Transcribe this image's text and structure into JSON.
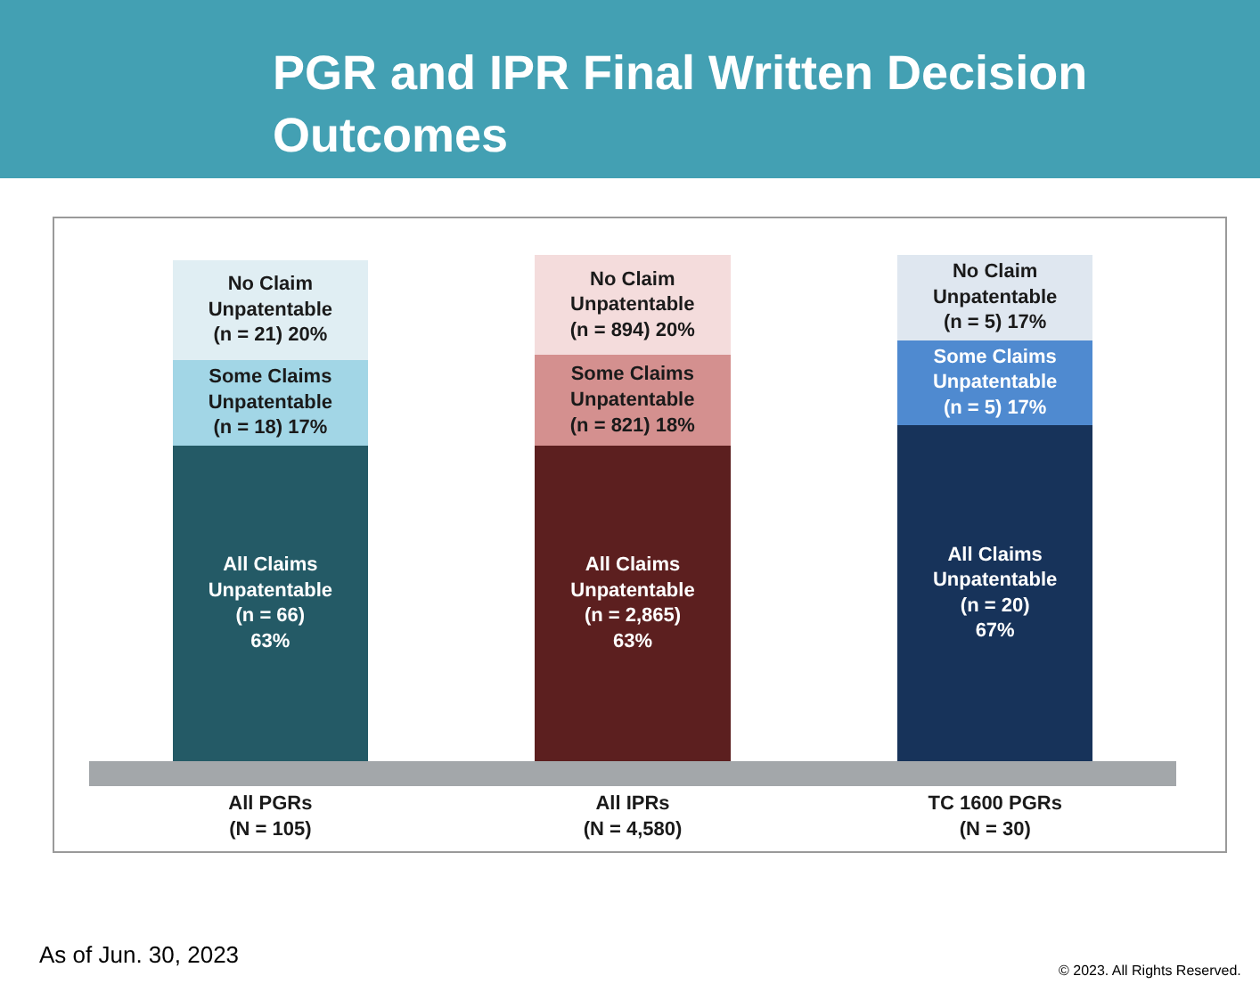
{
  "chart_data": {
    "type": "bar",
    "stacked": true,
    "title": "PGR and IPR Final Written Decision\nOutcomes",
    "categories": [
      "All PGRs\n(N = 105)",
      "All IPRs\n(N = 4,580)",
      "TC 1600 PGRs\n(N = 30)"
    ],
    "series": [
      {
        "colors": [
          "#245a66",
          "#5c1f1f",
          "#17335a"
        ],
        "values": [
          63,
          63,
          67
        ],
        "value_labels": [
          "All Claims\nUnpatentable\n(n = 66)\n63%",
          "All Claims\nUnpatentable\n(n = 2,865)\n63%",
          "All Claims\nUnpatentable\n(n = 20)\n67%"
        ]
      },
      {
        "colors": [
          "#a2d6e6",
          "#d4908f",
          "#4f8ad0"
        ],
        "values": [
          17,
          18,
          17
        ],
        "value_labels": [
          "Some Claims\nUnpatentable\n(n = 18) 17%",
          "Some Claims\nUnpatentable\n(n = 821) 18%",
          "Some Claims\nUnpatentable\n(n = 5) 17%"
        ]
      },
      {
        "colors": [
          "#e0eef3",
          "#f4dcdc",
          "#dfe7f0"
        ],
        "values": [
          20,
          20,
          17
        ],
        "value_labels": [
          "No Claim\nUnpatentable\n(n = 21) 20%",
          "No Claim\nUnpatentable\n(n = 894) 20%",
          "No Claim\nUnpatentable\n(n = 5) 17%"
        ]
      }
    ],
    "annotations": [
      "As of Jun. 30, 2023",
      "© 2023. All Rights Reserved."
    ]
  }
}
